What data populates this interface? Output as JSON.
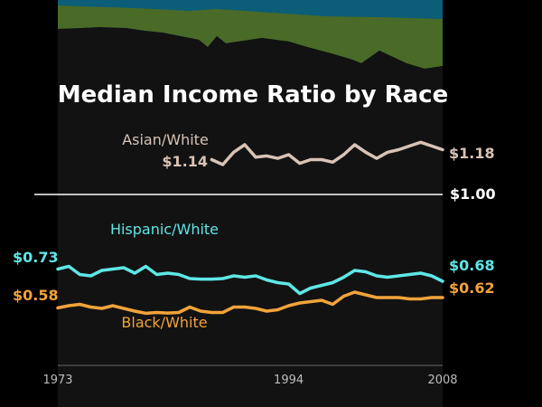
{
  "chart_data": {
    "type": "line",
    "title": "Median Income Ratio by Race",
    "xlabel": "",
    "ylabel": "",
    "x": [
      1973,
      1974,
      1975,
      1976,
      1977,
      1978,
      1979,
      1980,
      1981,
      1982,
      1983,
      1984,
      1985,
      1986,
      1987,
      1988,
      1989,
      1990,
      1991,
      1992,
      1993,
      1994,
      1995,
      1996,
      1997,
      1998,
      1999,
      2000,
      2001,
      2002,
      2003,
      2004,
      2005,
      2006,
      2007,
      2008
    ],
    "xticks": [
      "1973",
      "1994",
      "2008"
    ],
    "xtick_values": [
      1973,
      1994,
      2008
    ],
    "ylim": [
      0.5,
      1.25
    ],
    "reference_line": {
      "value": 1.0,
      "label": "$1.00",
      "color": "#ffffff"
    },
    "series": [
      {
        "name": "Asian/White",
        "color": "#d8c3b5",
        "start_label": "$1.14",
        "end_label": "$1.18",
        "x": [
          1987,
          1988,
          1989,
          1990,
          1991,
          1992,
          1993,
          1994,
          1995,
          1996,
          1997,
          1998,
          1999,
          2000,
          2001,
          2002,
          2003,
          2004,
          2005,
          2006,
          2007,
          2008
        ],
        "values": [
          1.14,
          1.12,
          1.17,
          1.2,
          1.15,
          1.155,
          1.145,
          1.16,
          1.125,
          1.14,
          1.14,
          1.13,
          1.16,
          1.2,
          1.17,
          1.145,
          1.17,
          1.18,
          1.195,
          1.21,
          1.195,
          1.18
        ]
      },
      {
        "name": "Hispanic/White",
        "color": "#5fe6e6",
        "start_label": "$0.73",
        "end_label": "$0.68",
        "x": [
          1973,
          1974,
          1975,
          1976,
          1977,
          1978,
          1979,
          1980,
          1981,
          1982,
          1983,
          1984,
          1985,
          1986,
          1987,
          1988,
          1989,
          1990,
          1991,
          1992,
          1993,
          1994,
          1995,
          1996,
          1997,
          1998,
          1999,
          2000,
          2001,
          2002,
          2003,
          2004,
          2005,
          2006,
          2007,
          2008
        ],
        "values": [
          0.725,
          0.735,
          0.705,
          0.7,
          0.72,
          0.725,
          0.73,
          0.71,
          0.735,
          0.705,
          0.71,
          0.705,
          0.69,
          0.688,
          0.688,
          0.69,
          0.7,
          0.695,
          0.7,
          0.685,
          0.675,
          0.67,
          0.635,
          0.655,
          0.665,
          0.675,
          0.695,
          0.72,
          0.715,
          0.7,
          0.695,
          0.7,
          0.705,
          0.71,
          0.7,
          0.68
        ]
      },
      {
        "name": "Black/White",
        "color": "#f2a33a",
        "start_label": "$0.58",
        "end_label": "$0.62",
        "x": [
          1973,
          1974,
          1975,
          1976,
          1977,
          1978,
          1979,
          1980,
          1981,
          1982,
          1983,
          1984,
          1985,
          1986,
          1987,
          1988,
          1989,
          1990,
          1991,
          1992,
          1993,
          1994,
          1995,
          1996,
          1997,
          1998,
          1999,
          2000,
          2001,
          2002,
          2003,
          2004,
          2005,
          2006,
          2007,
          2008
        ],
        "values": [
          0.582,
          0.59,
          0.595,
          0.585,
          0.58,
          0.59,
          0.58,
          0.57,
          0.562,
          0.565,
          0.563,
          0.565,
          0.585,
          0.57,
          0.565,
          0.565,
          0.585,
          0.585,
          0.58,
          0.57,
          0.575,
          0.59,
          0.6,
          0.605,
          0.61,
          0.595,
          0.625,
          0.64,
          0.63,
          0.62,
          0.62,
          0.62,
          0.615,
          0.615,
          0.62,
          0.62
        ]
      }
    ]
  },
  "background_area": {
    "colors": {
      "blue": "#0b5d78",
      "green": "#4a6a28",
      "plot": "#121212"
    }
  }
}
